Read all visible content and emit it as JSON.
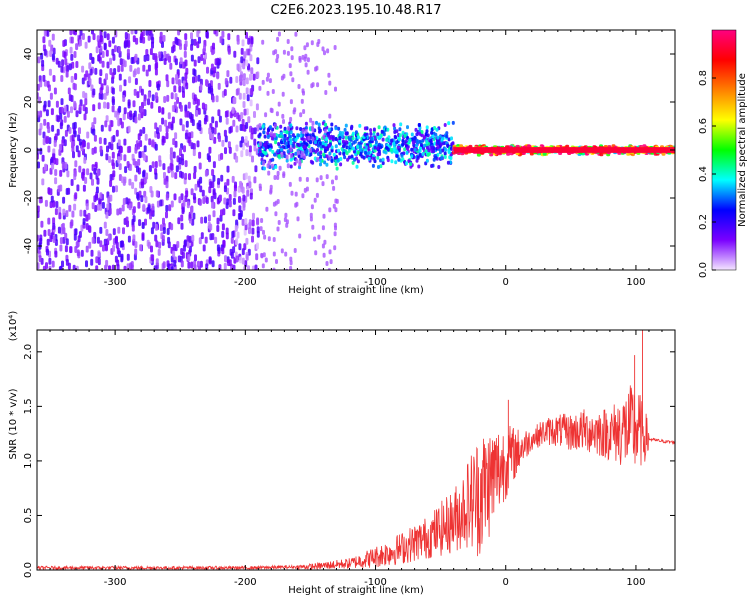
{
  "title": "C2E6.2023.195.10.48.R17",
  "chart_data": [
    {
      "type": "heatmap",
      "description": "Spectrogram of frequency vs height; broadband noise at low heights narrowing to a line near 0 Hz",
      "xlabel": "Height of straight line (km)",
      "ylabel": "Frequency (Hz)",
      "xlim": [
        -360,
        130
      ],
      "ylim": [
        -50,
        50
      ],
      "xticks": [
        -300,
        -200,
        -100,
        0,
        100
      ],
      "yticks": [
        -40,
        -20,
        0,
        20,
        40
      ],
      "grid": false,
      "regions": [
        {
          "x_range": [
            -360,
            -190
          ],
          "freq_range": [
            -50,
            50
          ],
          "amplitude": 0.15
        },
        {
          "x_range": [
            -190,
            -40
          ],
          "freq_range": [
            -8,
            12
          ],
          "amplitude": 0.35
        },
        {
          "x_range": [
            -40,
            130
          ],
          "freq_range": [
            -2,
            2
          ],
          "amplitude": 0.95
        }
      ],
      "colorbar": {
        "label": "Normalized spectral amplitude",
        "range": [
          0,
          1
        ],
        "ticks": [
          "0.0",
          "0.2",
          "0.4",
          "0.6",
          "0.8"
        ],
        "colors": [
          "#f4e6ff",
          "#7a00ff",
          "#0000ff",
          "#00ffff",
          "#00ff00",
          "#ffff00",
          "#ff8000",
          "#ff0000",
          "#ff0080"
        ]
      }
    },
    {
      "type": "line",
      "xlabel": "Height of straight line (km)",
      "ylabel": "SNR (10 * v/v)",
      "scale_label": "(x10⁴)",
      "xlim": [
        -360,
        130
      ],
      "ylim": [
        0,
        2.2
      ],
      "xticks": [
        -300,
        -200,
        -100,
        0,
        100
      ],
      "yticks": [
        "0.0",
        "0.5",
        "1.0",
        "1.5",
        "2.0"
      ],
      "grid": false,
      "color": "#ee3333",
      "series": [
        {
          "x": [
            -360,
            -300,
            -200,
            -150,
            -120,
            -100,
            -80,
            -60,
            -40,
            -30,
            -20,
            -10,
            0,
            10,
            20,
            30,
            40,
            50,
            60,
            70,
            80,
            90,
            100,
            110,
            120,
            130
          ],
          "y": [
            0.02,
            0.02,
            0.02,
            0.03,
            0.06,
            0.12,
            0.2,
            0.3,
            0.45,
            0.6,
            0.7,
            0.85,
            1.0,
            1.1,
            1.2,
            1.27,
            1.28,
            1.26,
            1.28,
            1.27,
            1.25,
            1.28,
            1.3,
            1.2,
            1.18,
            1.17
          ]
        }
      ],
      "noise_envelope": {
        "x": [
          -160,
          -120,
          -100,
          -80,
          -60,
          -40,
          -30,
          -20,
          -10,
          0,
          10,
          20,
          80,
          90,
          100,
          110
        ],
        "amplitude": [
          0.02,
          0.05,
          0.1,
          0.15,
          0.2,
          0.3,
          0.4,
          0.6,
          0.5,
          0.35,
          0.2,
          0.1,
          0.25,
          0.35,
          0.45,
          0.15
        ]
      },
      "peaks": [
        {
          "x": 2,
          "y": 1.56
        },
        {
          "x": 99,
          "y": 1.97
        },
        {
          "x": 105,
          "y": 2.2
        }
      ]
    }
  ]
}
